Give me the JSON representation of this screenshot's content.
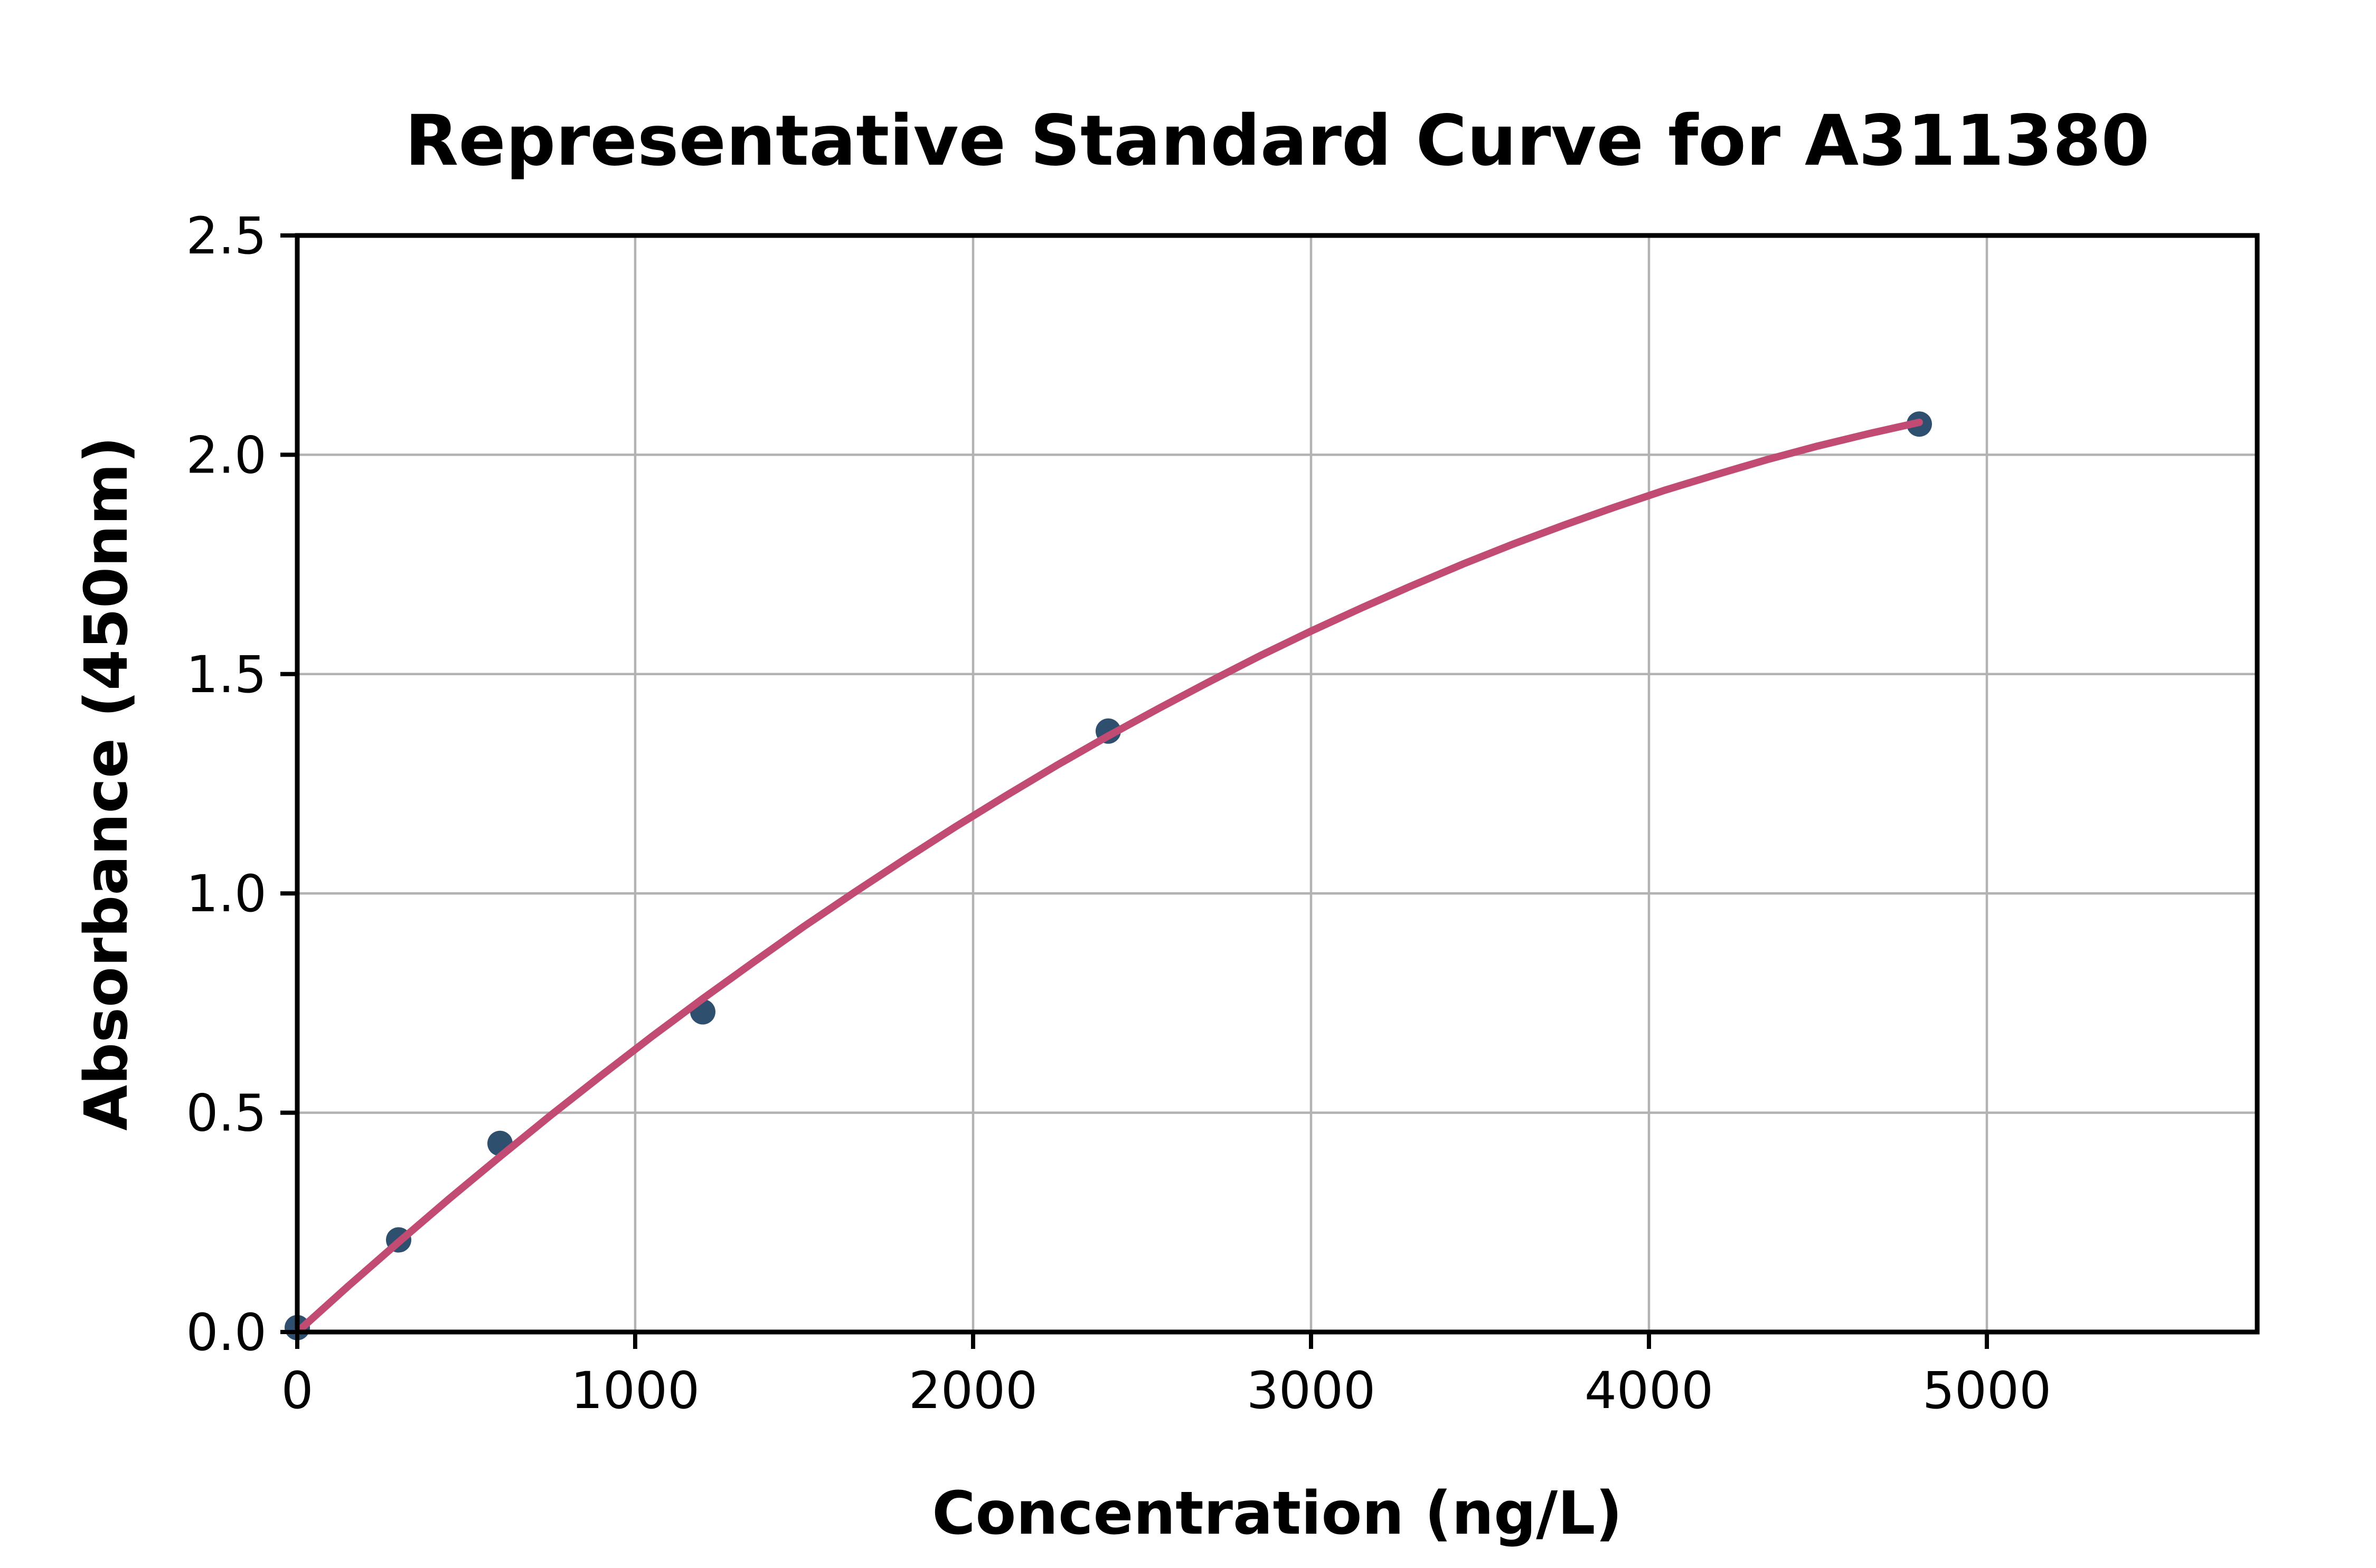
{
  "figure": {
    "background": "#ffffff"
  },
  "chart_data": {
    "type": "scatter",
    "title": "Representative Standard Curve for A311380",
    "xlabel": "Concentration (ng/L)",
    "ylabel": "Absorbance (450nm)",
    "xlim": [
      0,
      5800
    ],
    "ylim": [
      0,
      2.5
    ],
    "grid": true,
    "legend": "none",
    "x_ticks": [
      {
        "value": 0,
        "label": "0"
      },
      {
        "value": 1000,
        "label": "1000"
      },
      {
        "value": 2000,
        "label": "2000"
      },
      {
        "value": 3000,
        "label": "3000"
      },
      {
        "value": 4000,
        "label": "4000"
      },
      {
        "value": 5000,
        "label": "5000"
      }
    ],
    "y_ticks": [
      {
        "value": 0.0,
        "label": "0.0"
      },
      {
        "value": 0.5,
        "label": "0.5"
      },
      {
        "value": 1.0,
        "label": "1.0"
      },
      {
        "value": 1.5,
        "label": "1.5"
      },
      {
        "value": 2.0,
        "label": "2.0"
      },
      {
        "value": 2.5,
        "label": "2.5"
      }
    ],
    "points": [
      {
        "x": 0,
        "y": 0.01
      },
      {
        "x": 300,
        "y": 0.21
      },
      {
        "x": 600,
        "y": 0.43
      },
      {
        "x": 1200,
        "y": 0.73
      },
      {
        "x": 2400,
        "y": 1.37
      },
      {
        "x": 4800,
        "y": 2.07
      }
    ],
    "fit_curve": [
      [
        0,
        0.0
      ],
      [
        150,
        0.104
      ],
      [
        300,
        0.205
      ],
      [
        450,
        0.304
      ],
      [
        600,
        0.4
      ],
      [
        750,
        0.494
      ],
      [
        900,
        0.585
      ],
      [
        1050,
        0.674
      ],
      [
        1200,
        0.76
      ],
      [
        1350,
        0.843
      ],
      [
        1500,
        0.925
      ],
      [
        1650,
        1.003
      ],
      [
        1800,
        1.079
      ],
      [
        1950,
        1.153
      ],
      [
        2100,
        1.224
      ],
      [
        2250,
        1.293
      ],
      [
        2400,
        1.359
      ],
      [
        2550,
        1.422
      ],
      [
        2700,
        1.483
      ],
      [
        2850,
        1.542
      ],
      [
        3000,
        1.598
      ],
      [
        3150,
        1.651
      ],
      [
        3300,
        1.702
      ],
      [
        3450,
        1.751
      ],
      [
        3600,
        1.797
      ],
      [
        3750,
        1.84
      ],
      [
        3900,
        1.881
      ],
      [
        4050,
        1.92
      ],
      [
        4200,
        1.955
      ],
      [
        4350,
        1.989
      ],
      [
        4500,
        2.02
      ],
      [
        4650,
        2.048
      ],
      [
        4800,
        2.074
      ]
    ],
    "colors": {
      "curve": "#C14B73",
      "point": "#2F4F6E",
      "grid": "#B2B2B2",
      "axis": "#000000",
      "text": "#000000"
    }
  }
}
